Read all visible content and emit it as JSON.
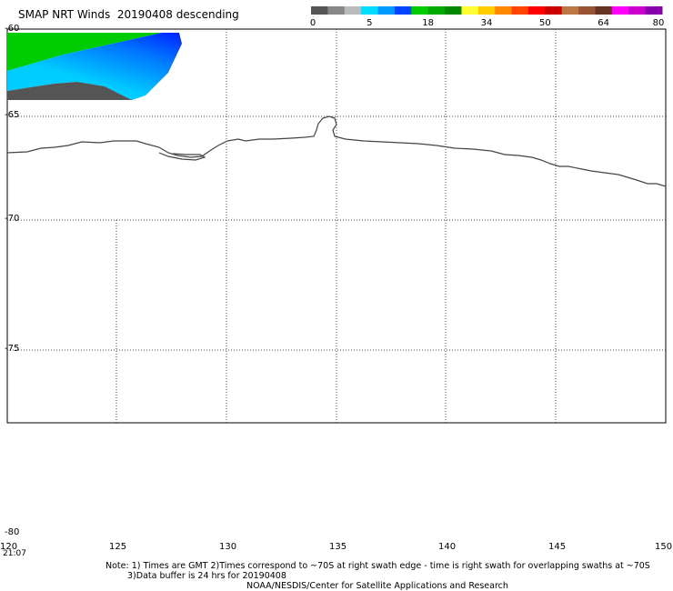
{
  "title": "SMAP NRT Winds  20190408 descending",
  "colorbar": {
    "labels": [
      "0",
      "5",
      "18",
      "34",
      "50",
      "64",
      "80"
    ],
    "segments": [
      {
        "color": "#555555"
      },
      {
        "color": "#888888"
      },
      {
        "color": "#bbbbbb"
      },
      {
        "color": "#00ddff"
      },
      {
        "color": "#0099ff"
      },
      {
        "color": "#0044ff"
      },
      {
        "color": "#00cc00"
      },
      {
        "color": "#00aa00"
      },
      {
        "color": "#008800"
      },
      {
        "color": "#ffff33"
      },
      {
        "color": "#ffcc00"
      },
      {
        "color": "#ff8800"
      },
      {
        "color": "#ff4400"
      },
      {
        "color": "#ff0000"
      },
      {
        "color": "#cc0000"
      },
      {
        "color": "#bb7744"
      },
      {
        "color": "#995533"
      },
      {
        "color": "#663322"
      },
      {
        "color": "#ff00ff"
      },
      {
        "color": "#cc00cc"
      },
      {
        "color": "#8800aa"
      }
    ]
  },
  "axes": {
    "lat_labels": [
      "-60",
      "-65",
      "-70",
      "-75",
      "-80"
    ],
    "lon_labels": [
      "120",
      "125",
      "130",
      "135",
      "140",
      "145",
      "150"
    ]
  },
  "time_label": "21:07",
  "notes": {
    "line1": "Note: 1) Times are GMT 2)Times correspond to ~70S at right swath edge - time is right swath for overlapping swaths at ~70S",
    "line2": "3)Data buffer is 24 hrs for 20190408",
    "line3": "NOAA/NESDIS/Center for Satellite Applications and Research"
  },
  "swath_colors": {
    "green": "#00cc00",
    "blue": "#0033ff",
    "cyan": "#00ccff",
    "dark": "#555555"
  }
}
